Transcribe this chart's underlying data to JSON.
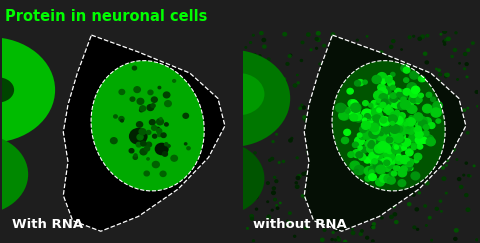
{
  "background_color": "#1e1e1e",
  "title": "Protein in neuronal cells",
  "title_color": "#00ff00",
  "title_fontsize": 10.5,
  "left_label": "With RNA",
  "right_label": "without RNA",
  "label_color": "#ffffff",
  "label_fontsize": 9.5,
  "left_panel_bg": "#000000",
  "right_panel_bg": "#0a1a0a",
  "outline_color": "#ffffff"
}
